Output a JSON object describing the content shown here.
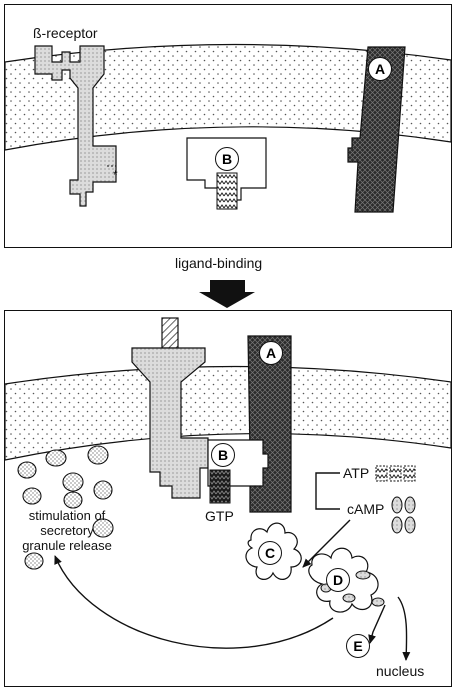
{
  "top": {
    "receptor_label": "ß-receptor",
    "asterisk": "*",
    "label_A": "A",
    "label_B": "B"
  },
  "middle": {
    "ligand_label": "ligand-binding"
  },
  "bottom": {
    "label_A": "A",
    "label_B": "B",
    "label_C": "C",
    "label_D": "D",
    "label_E": "E",
    "gtp_label": "GTP",
    "atp_label": "ATP",
    "camp_label": "cAMP",
    "stimulation_lines": [
      "stimulation of",
      "secretory",
      "granule release"
    ],
    "nucleus_label": "nucleus"
  },
  "colors": {
    "stroke": "#111111",
    "membrane_dots": "#555555",
    "receptor_fill": "#d9d9d9",
    "effector_fill": "#2a2a2a"
  }
}
